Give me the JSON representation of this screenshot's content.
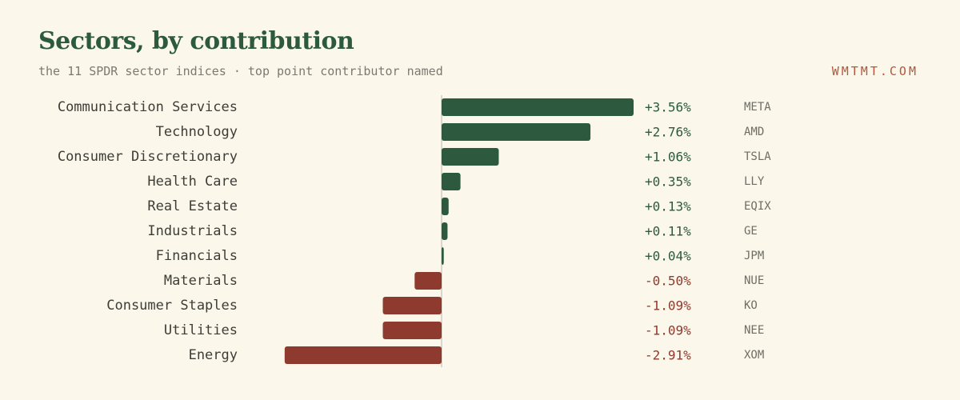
{
  "header": {
    "title": "Sectors, by contribution",
    "subtitle": "the 11 SPDR sector indices · top point contributor named",
    "brand": "WMTMT.COM"
  },
  "colors": {
    "positive": "#2d5a3e",
    "negative": "#8e3a2e",
    "background": "#fbf7ea",
    "axis": "#3d3d38"
  },
  "chart_data": {
    "type": "bar",
    "orientation": "horizontal",
    "title": "Sectors, by contribution",
    "subtitle": "the 11 SPDR sector indices · top point contributor named",
    "xlabel": "",
    "ylabel": "",
    "unit": "%",
    "xlim": [
      -3.56,
      3.56
    ],
    "grid": false,
    "legend": "none",
    "categories": [
      "Communication Services",
      "Technology",
      "Consumer Discretionary",
      "Health Care",
      "Real Estate",
      "Industrials",
      "Financials",
      "Materials",
      "Consumer Staples",
      "Utilities",
      "Energy"
    ],
    "values": [
      3.56,
      2.76,
      1.06,
      0.35,
      0.13,
      0.11,
      0.04,
      -0.5,
      -1.09,
      -1.09,
      -2.91
    ],
    "value_labels": [
      "+3.56%",
      "+2.76%",
      "+1.06%",
      "+0.35%",
      "+0.13%",
      "+0.11%",
      "+0.04%",
      "-0.50%",
      "-1.09%",
      "-1.09%",
      "-2.91%"
    ],
    "top_contributors": [
      "META",
      "AMD",
      "TSLA",
      "LLY",
      "EQIX",
      "GE",
      "JPM",
      "NUE",
      "KO",
      "NEE",
      "XOM"
    ]
  }
}
